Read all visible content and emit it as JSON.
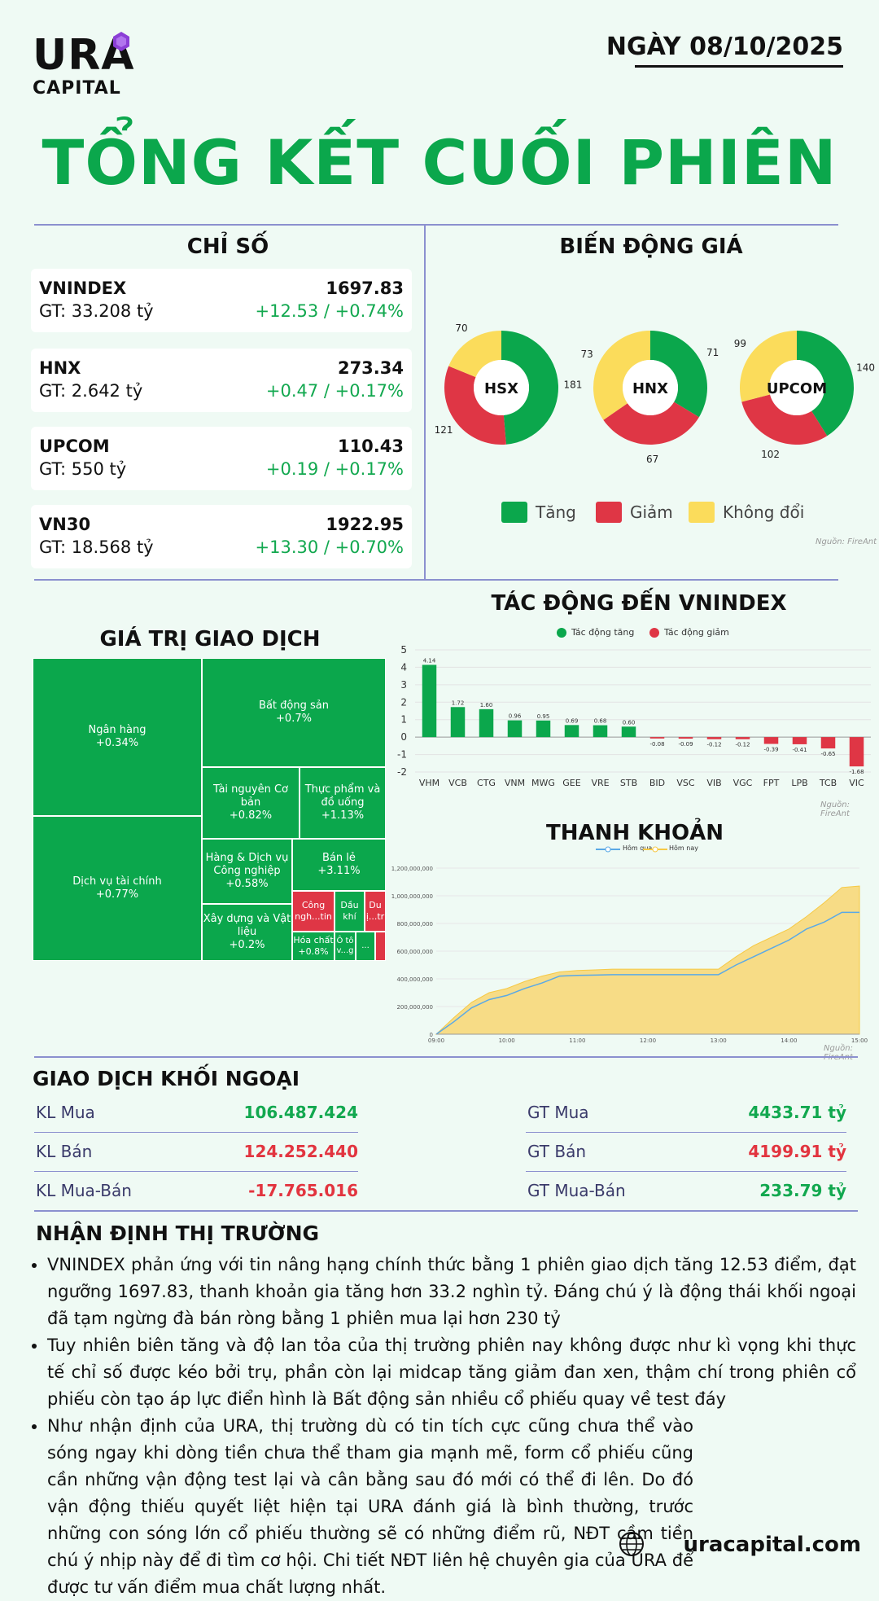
{
  "header": {
    "logo_main": "URA",
    "logo_sub": "CAPITAL",
    "date": "NGÀY 08/10/2025",
    "title": "TỔNG KẾT CUỐI PHIÊN"
  },
  "indices": {
    "heading": "CHỈ SỐ",
    "items": [
      {
        "name": "VNINDEX",
        "gt": "GT: 33.208 tỷ",
        "value": "1697.83",
        "change": "+12.53 / +0.74%"
      },
      {
        "name": "HNX",
        "gt": "GT: 2.642 tỷ",
        "value": "273.34",
        "change": "+0.47 / +0.17%"
      },
      {
        "name": "UPCOM",
        "gt": "GT: 550 tỷ",
        "value": "110.43",
        "change": "+0.19 / +0.17%"
      },
      {
        "name": "VN30",
        "gt": "GT: 18.568 tỷ",
        "value": "1922.95",
        "change": "+13.30 / +0.70%"
      }
    ]
  },
  "price_movement": {
    "heading": "BIẾN ĐỘNG GIÁ",
    "legend": {
      "up": "Tăng",
      "down": "Giảm",
      "flat": "Không đổi"
    },
    "source": "Nguồn: FireAnt",
    "colors": {
      "up": "#0ba74c",
      "down": "#df3645",
      "flat": "#fbdc5b"
    }
  },
  "trade_value": {
    "heading": "GIÁ TRỊ GIAO DỊCH",
    "cells": [
      {
        "name": "Ngân hàng",
        "change": "+0.34%"
      },
      {
        "name": "Dịch vụ tài chính",
        "change": "+0.77%"
      },
      {
        "name": "Bất động sản",
        "change": "+0.7%"
      },
      {
        "name": "Tài nguyên Cơ bản",
        "change": "+0.82%"
      },
      {
        "name": "Thực phẩm và đồ uống",
        "change": "+1.13%"
      },
      {
        "name": "Hàng & Dịch vụ Công nghiệp",
        "change": "+0.58%"
      },
      {
        "name": "Bán lẻ",
        "change": "+3.11%"
      },
      {
        "name": "Xây dựng và Vật liệu",
        "change": "+0.2%"
      },
      {
        "name": "Công ngh...tin",
        "change": ""
      },
      {
        "name": "Dầu khí",
        "change": ""
      },
      {
        "name": "Du lị...trí",
        "change": ""
      },
      {
        "name": "Hóa chất",
        "change": "+0.8%"
      },
      {
        "name": "Ô tô v...g",
        "change": ""
      },
      {
        "name": "...",
        "change": ""
      }
    ]
  },
  "impact": {
    "heading": "TÁC ĐỘNG ĐẾN VNINDEX",
    "legend_up": "Tác động tăng",
    "legend_down": "Tác động giảm",
    "source": "Nguồn: FireAnt"
  },
  "liquidity": {
    "heading": "THANH KHOẢN",
    "legend_prev": "Hôm qua",
    "legend_today": "Hôm nay",
    "source": "Nguồn: FireAnt"
  },
  "foreign": {
    "heading": "GIAO DỊCH KHỐI NGOẠI",
    "rows_left": [
      {
        "label": "KL Mua",
        "value": "106.487.424",
        "color": "#12a84f"
      },
      {
        "label": "KL Bán",
        "value": "124.252.440",
        "color": "#e2343f"
      },
      {
        "label": "KL Mua-Bán",
        "value": "-17.765.016",
        "color": "#e2343f"
      }
    ],
    "rows_right": [
      {
        "label": "GT Mua",
        "value": "4433.71 tỷ",
        "color": "#12a84f"
      },
      {
        "label": "GT Bán",
        "value": "4199.91 tỷ",
        "color": "#e2343f"
      },
      {
        "label": "GT Mua-Bán",
        "value": "233.79 tỷ",
        "color": "#12a84f"
      }
    ]
  },
  "outlook": {
    "heading": "NHẬN ĐỊNH THỊ TRƯỜNG",
    "bullets": [
      "VNINDEX phản ứng với tin nâng hạng chính thức bằng 1 phiên giao dịch tăng 12.53 điểm, đạt ngưỡng 1697.83, thanh khoản gia tăng hơn 33.2 nghìn tỷ. Đáng chú ý là động thái khối ngoại đã tạm ngừng đà bán ròng bằng 1 phiên mua lại hơn 230 tỷ",
      "Tuy nhiên biên tăng và độ lan tỏa của thị trường phiên nay không được như kì vọng khi thực tế chỉ số được kéo bởi trụ, phần còn lại midcap tăng giảm đan xen, thậm chí trong phiên cổ phiếu còn tạo áp lực điển hình là Bất động sản nhiều cổ phiếu quay về test đáy",
      "Như nhận định của URA, thị trường dù có tin tích cực cũng chưa thể vào sóng ngay khi dòng tiền chưa thể tham gia mạnh mẽ, form cổ phiếu cũng cần những vận động test lại và cân bằng sau đó mới có thể đi lên. Do đó vận động thiếu quyết liệt hiện tại URA đánh giá là bình thường, trước những con sóng lớn cổ phiếu thường sẽ có những điểm rũ, NĐT cầm tiền chú ý nhịp này để đi tìm cơ hội. Chi tiết NĐT liên hệ chuyên gia của URA để được tư vấn điểm mua chất lượng nhất."
    ]
  },
  "footer": {
    "site": "uracapital.com"
  },
  "chart_data": [
    {
      "type": "pie",
      "title": "HSX",
      "categories": [
        "Tăng",
        "Giảm",
        "Không đổi"
      ],
      "values": [
        181,
        121,
        70
      ]
    },
    {
      "type": "pie",
      "title": "HNX",
      "categories": [
        "Tăng",
        "Giảm",
        "Không đổi"
      ],
      "values": [
        71,
        67,
        73
      ]
    },
    {
      "type": "pie",
      "title": "UPCOM",
      "categories": [
        "Tăng",
        "Giảm",
        "Không đổi"
      ],
      "values": [
        140,
        102,
        99
      ]
    },
    {
      "type": "bar",
      "title": "TÁC ĐỘNG ĐẾN VNINDEX",
      "categories": [
        "VHM",
        "VCB",
        "CTG",
        "VNM",
        "MWG",
        "GEE",
        "VRE",
        "STB",
        "BID",
        "VSC",
        "VIB",
        "VGC",
        "FPT",
        "LPB",
        "TCB",
        "VIC"
      ],
      "values": [
        4.14,
        1.72,
        1.6,
        0.96,
        0.95,
        0.69,
        0.68,
        0.6,
        -0.08,
        -0.09,
        -0.12,
        -0.12,
        -0.39,
        -0.41,
        -0.65,
        -1.68
      ],
      "ylim": [
        -2,
        5
      ],
      "yticks": [
        -2,
        -1,
        0,
        1,
        2,
        3,
        4,
        5
      ]
    },
    {
      "type": "area",
      "title": "THANH KHOẢN",
      "x": [
        "09:00",
        "09:15",
        "09:30",
        "09:45",
        "10:00",
        "10:15",
        "10:30",
        "10:45",
        "11:00",
        "11:15",
        "11:30",
        "13:00",
        "13:15",
        "13:30",
        "13:45",
        "14:00",
        "14:15",
        "14:30",
        "14:45",
        "15:00"
      ],
      "xticks": [
        "09:00",
        "10:00",
        "11:00",
        "12:00",
        "13:00",
        "14:00",
        "15:00"
      ],
      "yticks": [
        "0",
        "200,000,000",
        "400,000,000",
        "600,000,000",
        "800,000,000",
        "1,000,000,000",
        "1,200,000,000"
      ],
      "ylim": [
        0,
        1200000000
      ],
      "series": [
        {
          "name": "Hôm qua",
          "values": [
            0,
            90000000,
            190000000,
            250000000,
            280000000,
            330000000,
            370000000,
            420000000,
            425000000,
            427000000,
            430000000,
            430000000,
            500000000,
            560000000,
            620000000,
            680000000,
            760000000,
            810000000,
            880000000,
            880000000
          ]
        },
        {
          "name": "Hôm nay",
          "values": [
            0,
            120000000,
            230000000,
            300000000,
            330000000,
            380000000,
            420000000,
            450000000,
            460000000,
            465000000,
            470000000,
            470000000,
            560000000,
            640000000,
            700000000,
            760000000,
            850000000,
            950000000,
            1060000000,
            1070000000
          ]
        }
      ]
    }
  ]
}
